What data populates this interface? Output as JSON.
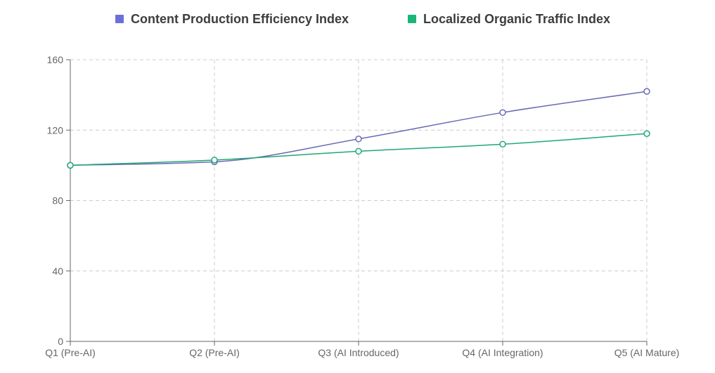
{
  "chart_data": {
    "type": "line",
    "categories": [
      "Q1 (Pre-AI)",
      "Q2 (Pre-AI)",
      "Q3 (AI Introduced)",
      "Q4 (AI Integration)",
      "Q5 (AI Mature)"
    ],
    "series": [
      {
        "name": "Content Production Efficiency Index",
        "values": [
          100,
          102,
          115,
          130,
          142
        ],
        "color": "#6c6fd9",
        "line_color": "#6a6ab5"
      },
      {
        "name": "Localized Organic Traffic Index",
        "values": [
          100,
          103,
          108,
          112,
          118
        ],
        "color": "#1bb57a",
        "line_color": "#1fa874"
      }
    ],
    "ylim": [
      0,
      160
    ],
    "yticks": [
      "0",
      "40",
      "80",
      "120",
      "160"
    ],
    "grid": true,
    "legend_position": "top",
    "title": "",
    "xlabel": "",
    "ylabel": ""
  }
}
